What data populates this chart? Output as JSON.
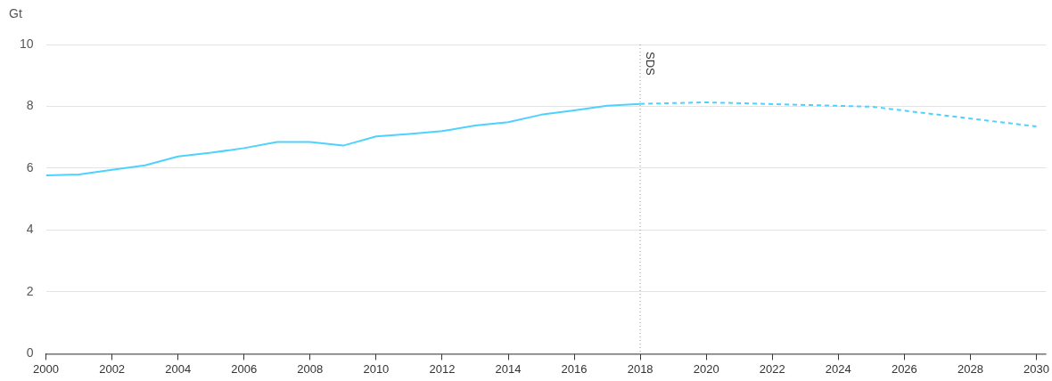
{
  "chart_data": {
    "type": "line",
    "ylabel": "Gt",
    "xlim": [
      2000,
      2030.3
    ],
    "ylim": [
      0,
      10
    ],
    "xticks": [
      2000,
      2002,
      2004,
      2006,
      2008,
      2010,
      2012,
      2014,
      2016,
      2018,
      2020,
      2022,
      2024,
      2026,
      2028,
      2030
    ],
    "yticks": [
      0,
      2,
      4,
      6,
      8,
      10
    ],
    "grid": "y",
    "legend": false,
    "marker": "none",
    "series": [
      {
        "color": "#4dd2ff",
        "line_style": "solid",
        "x": [
          2000,
          2001,
          2002,
          2003,
          2004,
          2005,
          2006,
          2007,
          2008,
          2009,
          2010,
          2011,
          2012,
          2013,
          2014,
          2015,
          2016,
          2017,
          2018
        ],
        "values": [
          5.77,
          5.8,
          5.95,
          6.09,
          6.38,
          6.5,
          6.65,
          6.85,
          6.85,
          6.73,
          7.03,
          7.11,
          7.2,
          7.38,
          7.49,
          7.73,
          7.87,
          8.02,
          8.08
        ]
      },
      {
        "color": "#4dd2ff",
        "line_style": "dashed",
        "x": [
          2018,
          2020,
          2025,
          2030
        ],
        "values": [
          8.08,
          8.13,
          7.99,
          7.35
        ]
      }
    ],
    "ref_lines": [
      {
        "axis": "x",
        "value": 2018,
        "label": "SDS",
        "color": "#999999",
        "line_style": "dotted"
      }
    ]
  }
}
